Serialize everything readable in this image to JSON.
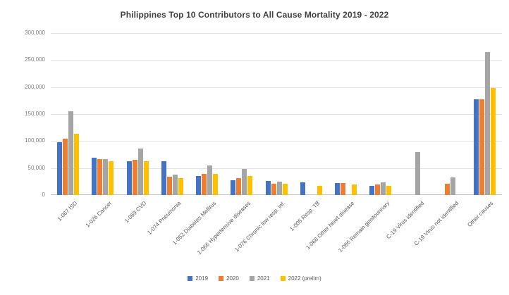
{
  "chart_data": {
    "type": "bar",
    "title": "Philippines Top 10 Contributors to All Cause Mortality 2019 - 2022",
    "categories": [
      "1-067 ISD",
      "1-026 Cancer",
      "1-069 CVD",
      "1-074 Pneumonia",
      "1-052 Diabetes Mellitus",
      "1-066 Hypertensive diseases",
      "1-076 Chronic low resp. inf.",
      "1-005 Resp. TB",
      "1-068 Other heart disease",
      "1-086 Remain genitourinary",
      "C-19 Virus identified",
      "C-19 Virus not identified",
      "Other causes"
    ],
    "series": [
      {
        "name": "2019",
        "color": "#4472C4",
        "values": [
          98000,
          69000,
          63000,
          62000,
          35000,
          28000,
          26000,
          23000,
          22000,
          17000,
          0,
          0,
          178000
        ]
      },
      {
        "name": "2020",
        "color": "#ED7D31",
        "values": [
          105000,
          66000,
          65000,
          34000,
          39000,
          31000,
          21000,
          0,
          22000,
          19000,
          0,
          21000,
          178000
        ]
      },
      {
        "name": "2021",
        "color": "#A5A5A5",
        "values": [
          155000,
          66000,
          86000,
          38000,
          55000,
          48000,
          25000,
          0,
          0,
          24000,
          80000,
          33000,
          265000
        ]
      },
      {
        "name": "2022 (prelim)",
        "color": "#FFC000",
        "values": [
          113000,
          63000,
          63000,
          31000,
          39000,
          35000,
          21000,
          17000,
          20000,
          17000,
          0,
          0,
          198000
        ]
      }
    ],
    "ylim": [
      0,
      300000
    ],
    "y_ticks": [
      {
        "value": 0,
        "label": "0"
      },
      {
        "value": 50000,
        "label": "50,000"
      },
      {
        "value": 100000,
        "label": "100,000"
      },
      {
        "value": 150000,
        "label": "150,000"
      },
      {
        "value": 200000,
        "label": "200,000"
      },
      {
        "value": 250000,
        "label": "250,000"
      },
      {
        "value": 300000,
        "label": "300,000"
      }
    ],
    "xlabel": "",
    "ylabel": "",
    "grid": true,
    "legend_position": "bottom"
  }
}
